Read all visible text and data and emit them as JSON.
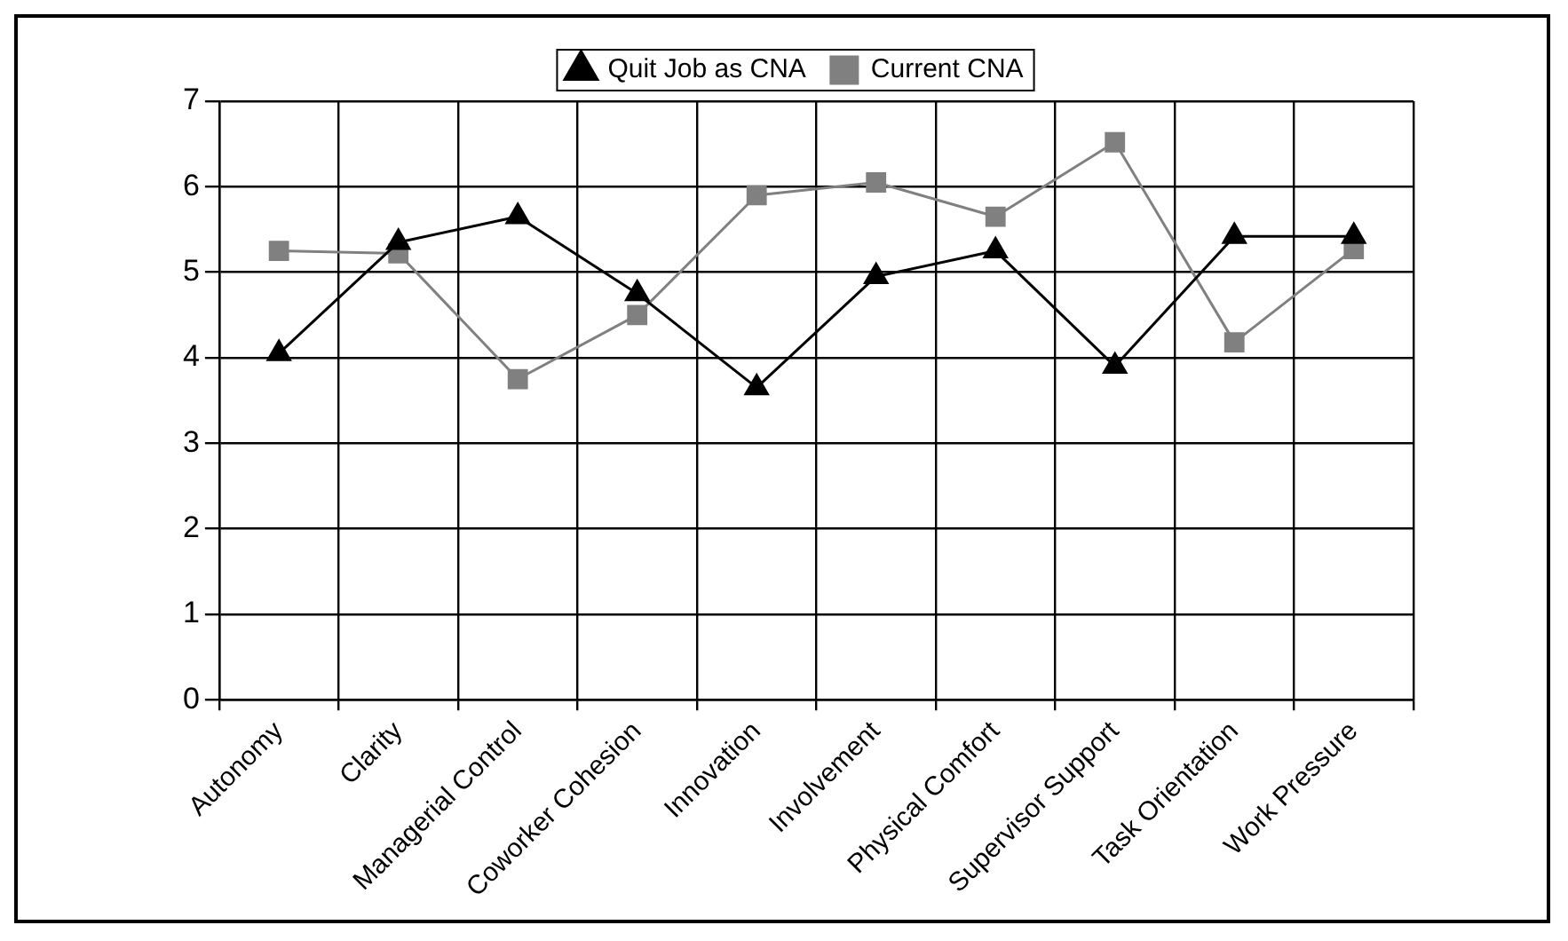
{
  "chart_data": {
    "type": "line",
    "categories": [
      "Autonomy",
      "Clarity",
      "Managerial Control",
      "Coworker Cohesion",
      "Innovation",
      "Involvement",
      "Physical Comfort",
      "Supervisor Support",
      "Task Orientation",
      "Work Pressure"
    ],
    "series": [
      {
        "name": "Quit Job as CNA",
        "color": "#000000",
        "marker": "triangle",
        "values": [
          4.05,
          5.35,
          5.65,
          4.75,
          3.65,
          4.95,
          5.25,
          3.9,
          5.42,
          5.42
        ]
      },
      {
        "name": "Current CNA",
        "color": "#808080",
        "marker": "square",
        "values": [
          5.25,
          5.22,
          3.75,
          4.5,
          5.9,
          6.05,
          5.65,
          6.52,
          4.18,
          5.27
        ]
      }
    ],
    "ylim": [
      0,
      7
    ],
    "yticks": [
      0,
      1,
      2,
      3,
      4,
      5,
      6,
      7
    ],
    "grid": true,
    "legend": "top",
    "line_style": "solid"
  }
}
